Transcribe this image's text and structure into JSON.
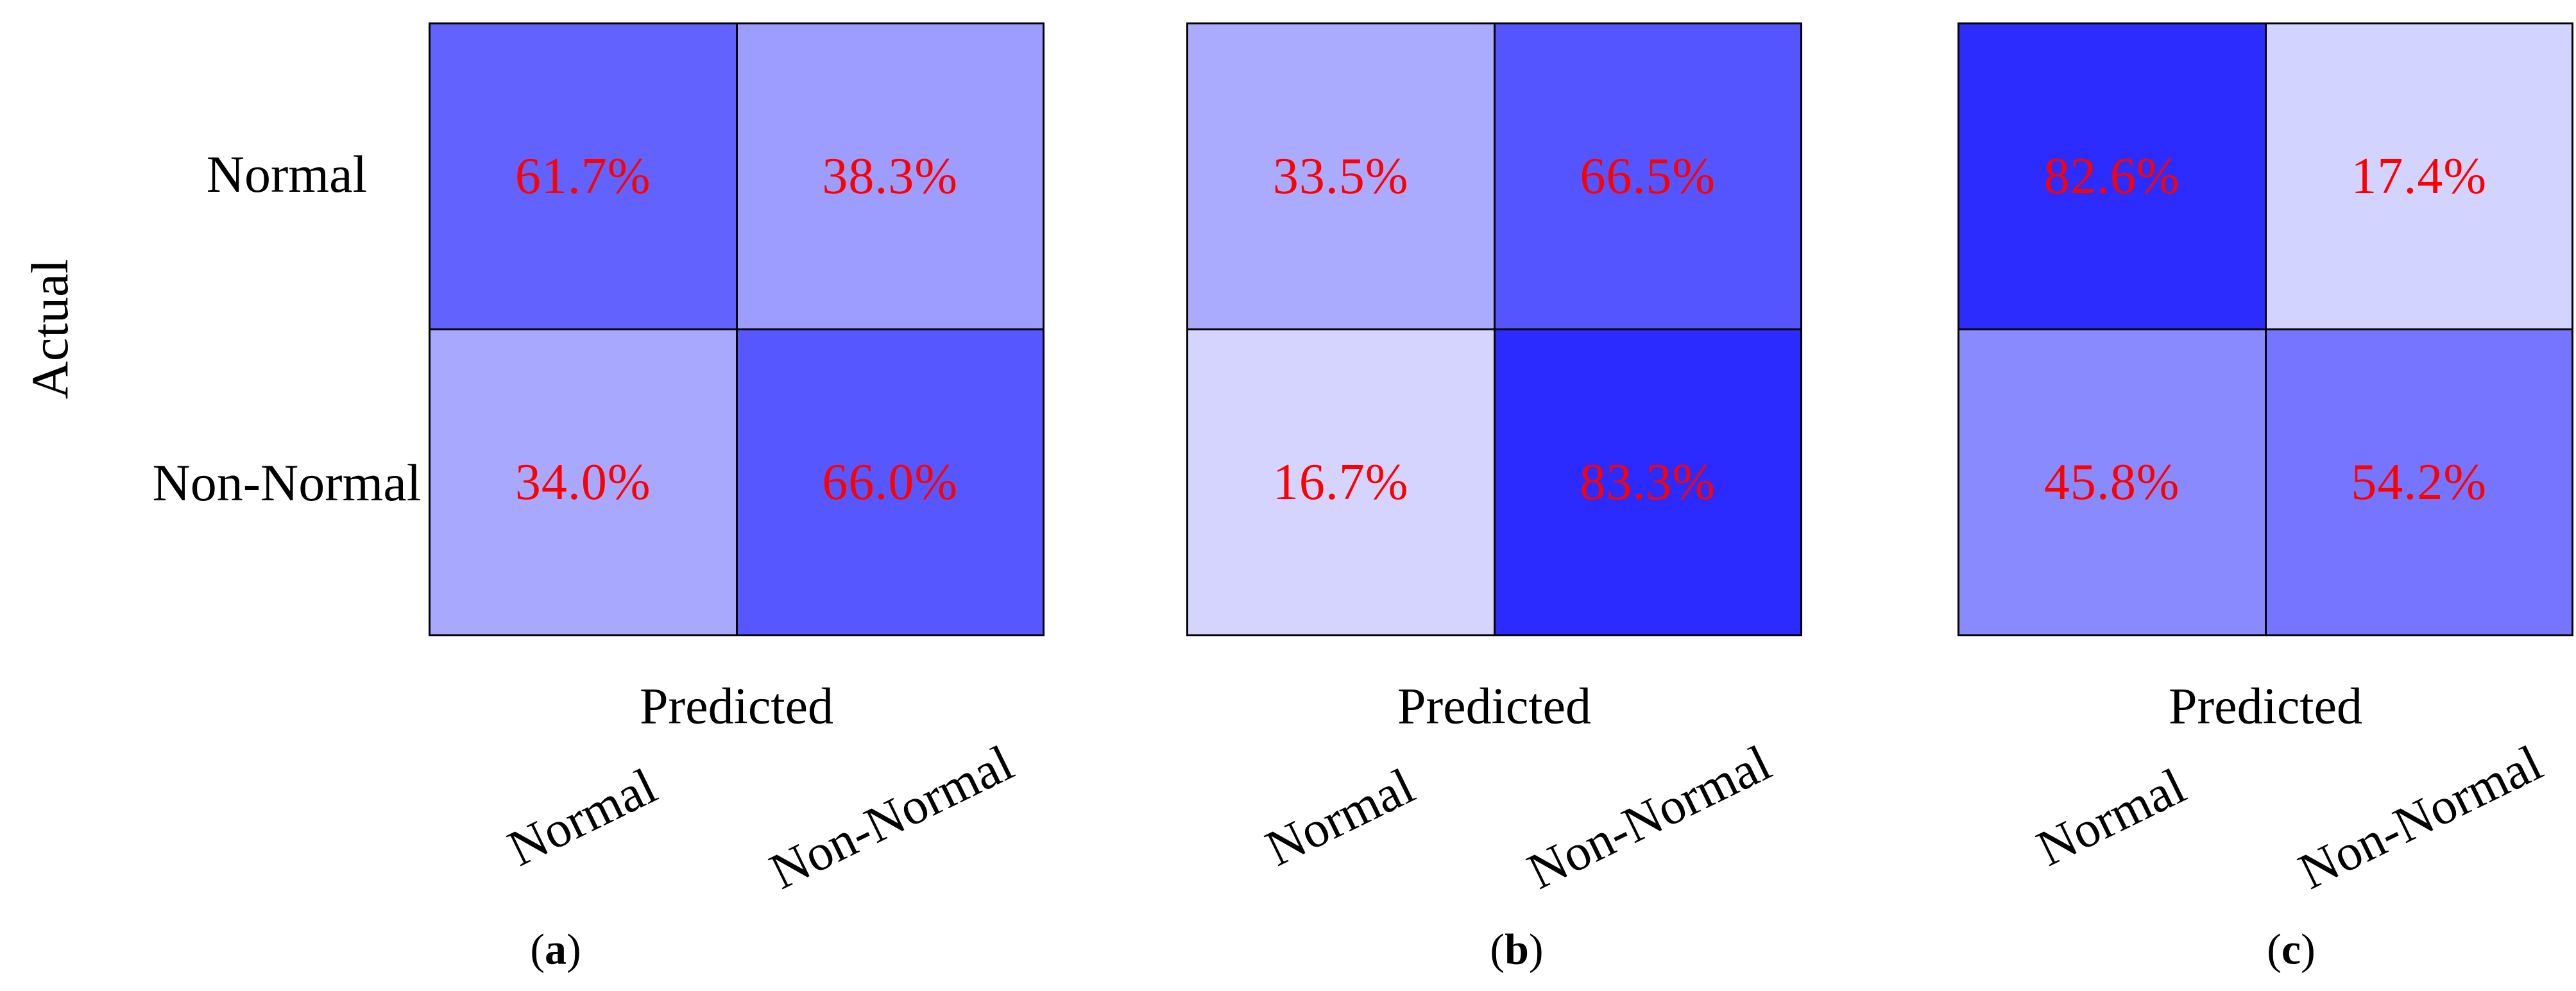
{
  "figure": {
    "background": "#ffffff",
    "ylabel": "Actual",
    "row_tick_labels": [
      "Normal",
      "Non-Normal"
    ],
    "value_text_color": "#ff0000",
    "grid_line_color": "#000000"
  },
  "chart_data": [
    {
      "type": "heatmap",
      "caption": "(a)",
      "caption_prefix": "(",
      "caption_letter": "a",
      "caption_suffix": ")",
      "xlabel": "Predicted",
      "ylabel": "Actual",
      "x_tick_labels": [
        "Normal",
        "Non-Normal"
      ],
      "y_tick_labels": [
        "Normal",
        "Non-Normal"
      ],
      "values_percent": [
        [
          61.7,
          38.3
        ],
        [
          34.0,
          66.0
        ]
      ],
      "rows": [
        {
          "actual": "Normal",
          "cells": [
            {
              "label": "61.7%",
              "value": 61.7,
              "color": "#6262ff"
            },
            {
              "label": "38.3%",
              "value": 38.3,
              "color": "#9d9dff"
            }
          ]
        },
        {
          "actual": "Non-Normal",
          "cells": [
            {
              "label": "34.0%",
              "value": 34.0,
              "color": "#a8a8ff"
            },
            {
              "label": "66.0%",
              "value": 66.0,
              "color": "#5757ff"
            }
          ]
        }
      ],
      "colormap": {
        "low_color": "#ffffff",
        "high_color": "#0000ff",
        "range_percent": [
          0,
          100
        ]
      },
      "legend": "none",
      "grid": "cell borders only"
    },
    {
      "type": "heatmap",
      "caption": "(b)",
      "caption_prefix": "(",
      "caption_letter": "b",
      "caption_suffix": ")",
      "xlabel": "Predicted",
      "ylabel": "Actual",
      "x_tick_labels": [
        "Normal",
        "Non-Normal"
      ],
      "y_tick_labels": [
        "Normal",
        "Non-Normal"
      ],
      "values_percent": [
        [
          33.5,
          66.5
        ],
        [
          16.7,
          83.3
        ]
      ],
      "rows": [
        {
          "actual": "Normal",
          "cells": [
            {
              "label": "33.5%",
              "value": 33.5,
              "color": "#aaaaff"
            },
            {
              "label": "66.5%",
              "value": 66.5,
              "color": "#5555ff"
            }
          ]
        },
        {
          "actual": "Non-Normal",
          "cells": [
            {
              "label": "16.7%",
              "value": 16.7,
              "color": "#d4d4ff"
            },
            {
              "label": "83.3%",
              "value": 83.3,
              "color": "#2b2bff"
            }
          ]
        }
      ],
      "colormap": {
        "low_color": "#ffffff",
        "high_color": "#0000ff",
        "range_percent": [
          0,
          100
        ]
      },
      "legend": "none",
      "grid": "cell borders only"
    },
    {
      "type": "heatmap",
      "caption": "(c)",
      "caption_prefix": "(",
      "caption_letter": "c",
      "caption_suffix": ")",
      "xlabel": "Predicted",
      "ylabel": "Actual",
      "x_tick_labels": [
        "Normal",
        "Non-Normal"
      ],
      "y_tick_labels": [
        "Normal",
        "Non-Normal"
      ],
      "values_percent": [
        [
          82.6,
          17.4
        ],
        [
          45.8,
          54.2
        ]
      ],
      "rows": [
        {
          "actual": "Normal",
          "cells": [
            {
              "label": "82.6%",
              "value": 82.6,
              "color": "#2c2cff"
            },
            {
              "label": "17.4%",
              "value": 17.4,
              "color": "#d3d3ff"
            }
          ]
        },
        {
          "actual": "Non-Normal",
          "cells": [
            {
              "label": "45.8%",
              "value": 45.8,
              "color": "#8a8aff"
            },
            {
              "label": "54.2%",
              "value": 54.2,
              "color": "#7575ff"
            }
          ]
        }
      ],
      "colormap": {
        "low_color": "#ffffff",
        "high_color": "#0000ff",
        "range_percent": [
          0,
          100
        ]
      },
      "legend": "none",
      "grid": "cell borders only"
    }
  ]
}
